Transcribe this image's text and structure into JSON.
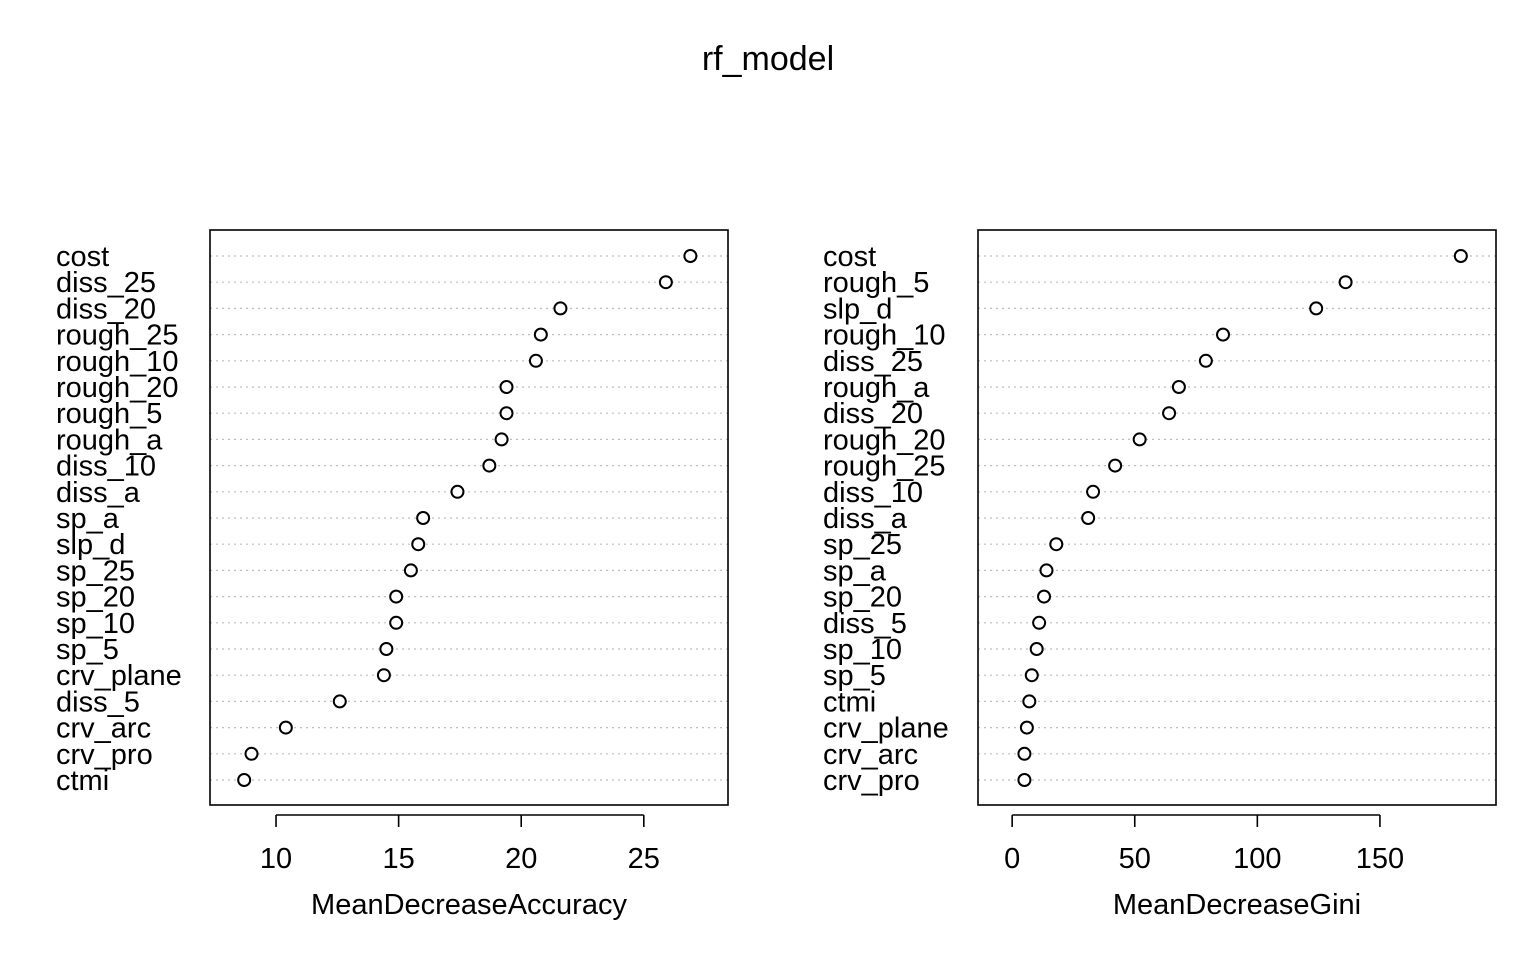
{
  "title": "rf_model",
  "chart_data": [
    {
      "type": "scatter",
      "subtype": "dotchart",
      "xlabel": "MeanDecreaseAccuracy",
      "ylabel": "",
      "grid": "dotted horizontal",
      "xticks": [
        10,
        15,
        20,
        25
      ],
      "xlim": [
        8.0,
        27.7
      ],
      "categories": [
        "cost",
        "diss_25",
        "diss_20",
        "rough_25",
        "rough_10",
        "rough_20",
        "rough_5",
        "rough_a",
        "diss_10",
        "diss_a",
        "sp_a",
        "slp_d",
        "sp_25",
        "sp_20",
        "sp_10",
        "sp_5",
        "crv_plane",
        "diss_5",
        "crv_arc",
        "crv_pro",
        "ctmi"
      ],
      "values": [
        26.9,
        25.9,
        21.6,
        20.8,
        20.6,
        19.4,
        19.4,
        19.2,
        18.7,
        17.4,
        16.0,
        15.8,
        15.5,
        14.9,
        14.9,
        14.5,
        14.4,
        12.6,
        10.4,
        9.0,
        8.7
      ]
    },
    {
      "type": "scatter",
      "subtype": "dotchart",
      "xlabel": "MeanDecreaseGini",
      "ylabel": "",
      "grid": "dotted horizontal",
      "xticks": [
        0,
        50,
        100,
        150
      ],
      "xlim": [
        -7,
        190
      ],
      "categories": [
        "cost",
        "rough_5",
        "slp_d",
        "rough_10",
        "diss_25",
        "rough_a",
        "diss_20",
        "rough_20",
        "rough_25",
        "diss_10",
        "diss_a",
        "sp_25",
        "sp_a",
        "sp_20",
        "diss_5",
        "sp_10",
        "sp_5",
        "ctmi",
        "crv_plane",
        "crv_arc",
        "crv_pro"
      ],
      "values": [
        183,
        136,
        124,
        86,
        79,
        68,
        64,
        52,
        42,
        33,
        31,
        18,
        14,
        13,
        11,
        10,
        8,
        7,
        6,
        5,
        5
      ]
    }
  ]
}
